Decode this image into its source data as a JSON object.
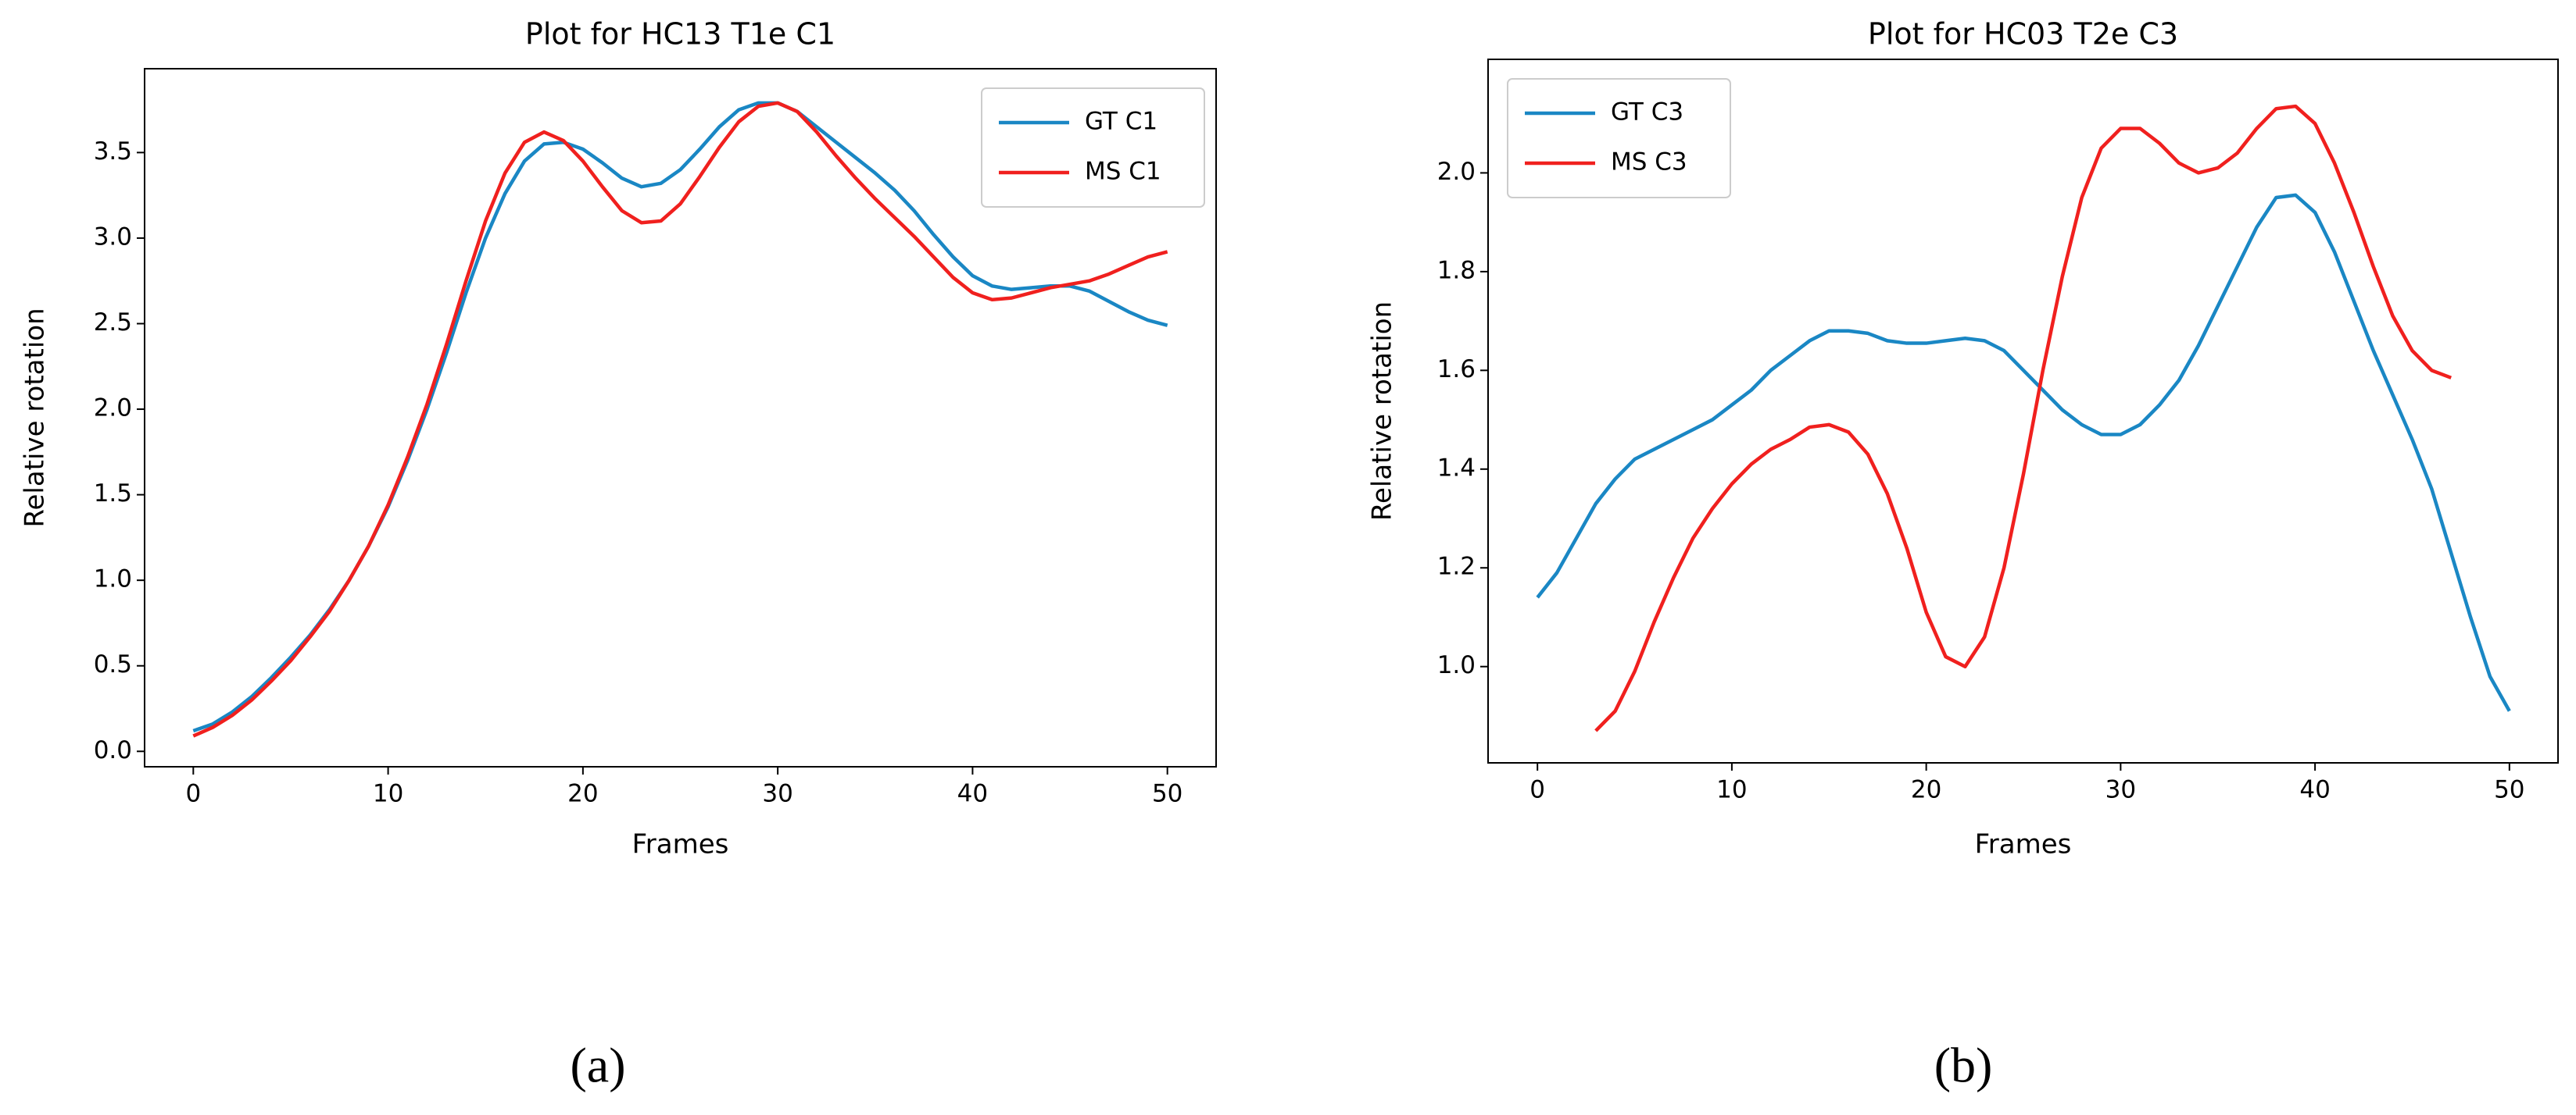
{
  "chart_data": [
    {
      "type": "line",
      "title": "Plot for HC13 T1e C1",
      "xlabel": "Frames",
      "ylabel": "Relative rotation",
      "caption": "(a)",
      "x": [
        0,
        1,
        2,
        3,
        4,
        5,
        6,
        7,
        8,
        9,
        10,
        11,
        12,
        13,
        14,
        15,
        16,
        17,
        18,
        19,
        20,
        21,
        22,
        23,
        24,
        25,
        26,
        27,
        28,
        29,
        30,
        31,
        32,
        33,
        34,
        35,
        36,
        37,
        38,
        39,
        40,
        41,
        42,
        43,
        44,
        45,
        46,
        47,
        48,
        49,
        50
      ],
      "series": [
        {
          "name": "GT C1",
          "color": "#1a87c4",
          "values": [
            0.12,
            0.16,
            0.23,
            0.32,
            0.43,
            0.55,
            0.68,
            0.83,
            1.0,
            1.2,
            1.43,
            1.7,
            2.0,
            2.33,
            2.68,
            3.0,
            3.26,
            3.45,
            3.55,
            3.56,
            3.52,
            3.44,
            3.35,
            3.3,
            3.32,
            3.4,
            3.52,
            3.65,
            3.75,
            3.79,
            3.79,
            3.74,
            3.65,
            3.56,
            3.47,
            3.38,
            3.28,
            3.16,
            3.02,
            2.89,
            2.78,
            2.72,
            2.7,
            2.71,
            2.72,
            2.72,
            2.69,
            2.63,
            2.57,
            2.52,
            2.49
          ]
        },
        {
          "name": "MS C1",
          "color": "#f0201e",
          "values": [
            0.09,
            0.14,
            0.21,
            0.3,
            0.41,
            0.53,
            0.67,
            0.82,
            1.0,
            1.2,
            1.44,
            1.72,
            2.03,
            2.38,
            2.75,
            3.1,
            3.38,
            3.56,
            3.62,
            3.57,
            3.45,
            3.3,
            3.16,
            3.09,
            3.1,
            3.2,
            3.36,
            3.53,
            3.68,
            3.77,
            3.79,
            3.74,
            3.62,
            3.48,
            3.35,
            3.23,
            3.12,
            3.01,
            2.89,
            2.77,
            2.68,
            2.64,
            2.65,
            2.68,
            2.71,
            2.73,
            2.75,
            2.79,
            2.84,
            2.89,
            2.92
          ]
        }
      ],
      "xlim": [
        -2.5,
        52.5
      ],
      "xticks": [
        0,
        10,
        20,
        30,
        40,
        50
      ],
      "ylim": [
        -0.09,
        3.99
      ],
      "yticks": [
        {
          "value": 0,
          "label": "0.0"
        },
        0.5,
        {
          "value": 1,
          "label": "1.0"
        },
        1.5,
        {
          "value": 2,
          "label": "2.0"
        },
        2.5,
        {
          "value": 3,
          "label": "3.0"
        },
        3.5
      ],
      "legend": "upper right",
      "grid": false
    },
    {
      "type": "line",
      "title": "Plot for HC03 T2e C3",
      "xlabel": "Frames",
      "ylabel": "Relative rotation",
      "caption": "(b)",
      "x": [
        0,
        1,
        2,
        3,
        4,
        5,
        6,
        7,
        8,
        9,
        10,
        11,
        12,
        13,
        14,
        15,
        16,
        17,
        18,
        19,
        20,
        21,
        22,
        23,
        24,
        25,
        26,
        27,
        28,
        29,
        30,
        31,
        32,
        33,
        34,
        35,
        36,
        37,
        38,
        39,
        40,
        41,
        42,
        43,
        44,
        45,
        46,
        47,
        48,
        49,
        50
      ],
      "series": [
        {
          "name": "GT C3",
          "color": "#1a87c4",
          "values": [
            1.14,
            1.19,
            1.26,
            1.33,
            1.38,
            1.42,
            1.44,
            1.46,
            1.48,
            1.5,
            1.53,
            1.56,
            1.6,
            1.63,
            1.66,
            1.68,
            1.68,
            1.675,
            1.66,
            1.655,
            1.655,
            1.66,
            1.665,
            1.66,
            1.64,
            1.6,
            1.56,
            1.52,
            1.49,
            1.47,
            1.47,
            1.49,
            1.53,
            1.58,
            1.65,
            1.73,
            1.81,
            1.89,
            1.95,
            1.955,
            1.92,
            1.84,
            1.74,
            1.64,
            1.55,
            1.46,
            1.36,
            1.23,
            1.1,
            0.98,
            0.91
          ]
        },
        {
          "name": "MS C3",
          "color": "#f0201e",
          "values": [
            null,
            null,
            null,
            0.87,
            0.91,
            0.99,
            1.09,
            1.18,
            1.26,
            1.32,
            1.37,
            1.41,
            1.44,
            1.46,
            1.485,
            1.49,
            1.475,
            1.43,
            1.35,
            1.24,
            1.11,
            1.02,
            1.0,
            1.06,
            1.2,
            1.39,
            1.6,
            1.79,
            1.95,
            2.05,
            2.09,
            2.09,
            2.06,
            2.02,
            2.0,
            2.01,
            2.04,
            2.09,
            2.13,
            2.135,
            2.1,
            2.02,
            1.92,
            1.81,
            1.71,
            1.64,
            1.6,
            1.585,
            null,
            null,
            null
          ]
        }
      ],
      "xlim": [
        -2.54,
        52.5
      ],
      "xticks": [
        0,
        10,
        20,
        30,
        40,
        50
      ],
      "ylim": [
        0.805,
        2.23
      ],
      "yticks": [
        {
          "value": 1,
          "label": "1.0"
        },
        1.2,
        1.4,
        1.6,
        1.8,
        {
          "value": 2,
          "label": "2.0"
        }
      ],
      "legend": "upper left",
      "grid": false
    }
  ]
}
